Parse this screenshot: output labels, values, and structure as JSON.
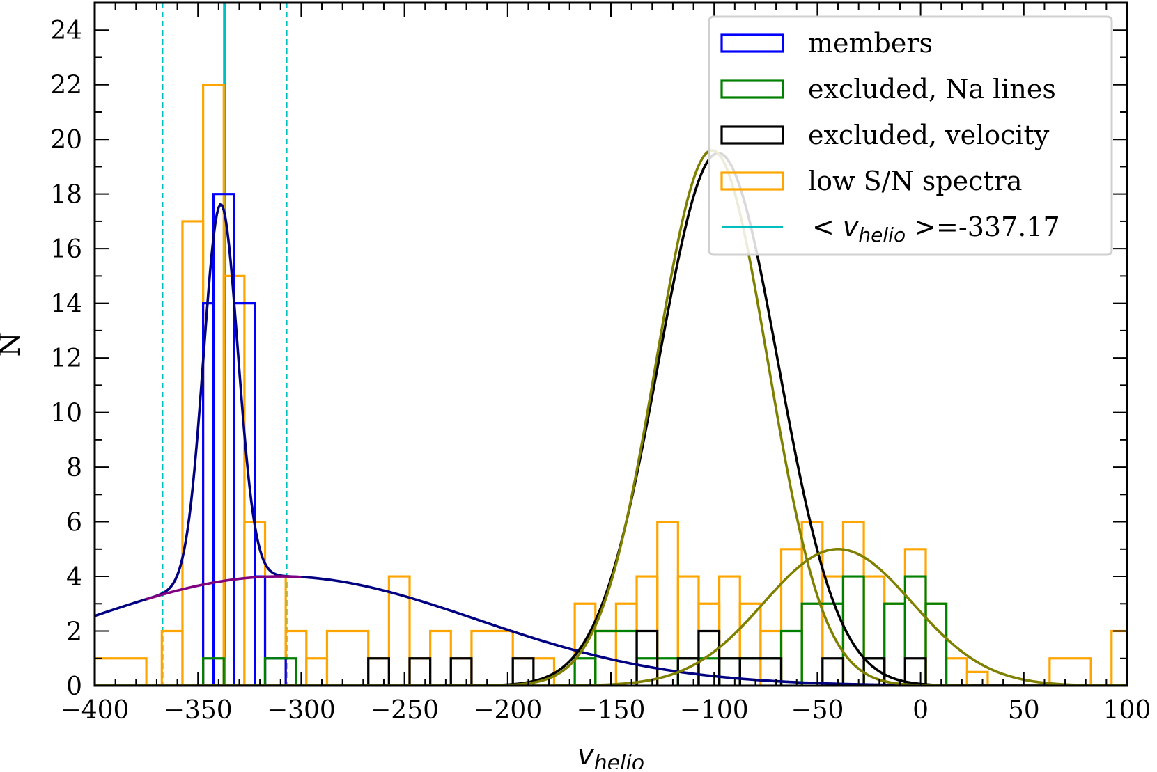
{
  "chart_data": {
    "type": "histogram",
    "xlabel": "v",
    "xlabel_sub": "helio",
    "ylabel": "N",
    "xlim": [
      -400,
      100
    ],
    "ylim": [
      0,
      25
    ],
    "x_ticks": [
      -400,
      -350,
      -300,
      -250,
      -200,
      -150,
      -100,
      -50,
      0,
      50,
      100
    ],
    "x_tick_labels": [
      "−400",
      "−350",
      "−300",
      "−250",
      "−200",
      "−150",
      "−100",
      "−50",
      "0",
      "50",
      "100"
    ],
    "y_ticks": [
      0,
      2,
      4,
      6,
      8,
      10,
      12,
      14,
      16,
      18,
      20,
      22,
      24
    ],
    "y_tick_labels": [
      "0",
      "2",
      "4",
      "6",
      "8",
      "10",
      "12",
      "14",
      "16",
      "18",
      "20",
      "22",
      "24"
    ],
    "colors": {
      "members": "#0000ff",
      "excluded_na": "#008000",
      "excluded_vel": "#000000",
      "low_sn": "#ffa500",
      "mean_line": "#00bfbf",
      "navy_fit": "#000080",
      "purple_fit": "#800080",
      "olive_fit": "#808000",
      "black_fit": "#000000"
    },
    "legend": [
      {
        "label": "members",
        "color": "#0000ff",
        "kind": "patch"
      },
      {
        "label": "excluded, Na lines",
        "color": "#008000",
        "kind": "patch"
      },
      {
        "label": "excluded, velocity",
        "color": "#000000",
        "kind": "patch"
      },
      {
        "label": "low S/N spectra",
        "color": "#ffa500",
        "kind": "patch"
      },
      {
        "label": "=-337.17",
        "color": "#00bfbf",
        "kind": "line",
        "prefix": "< v",
        "sub": "helio",
        "suffix": " >"
      }
    ],
    "mean_velocity": -337.17,
    "dashed_bounds": [
      -367.2,
      -307.1
    ],
    "series": [
      {
        "name": "low S/N spectra",
        "color": "#ffa500",
        "bins": [
          [
            -400,
            -375,
            1
          ],
          [
            -367.5,
            -357.5,
            2
          ],
          [
            -357.5,
            -347.5,
            17
          ],
          [
            -347.5,
            -337.5,
            22
          ],
          [
            -337.5,
            -327.5,
            15
          ],
          [
            -327.5,
            -317.5,
            6
          ],
          [
            -317.5,
            -307.5,
            4
          ],
          [
            -307.5,
            -297.5,
            2
          ],
          [
            -297.5,
            -287.5,
            1
          ],
          [
            -287.5,
            -267.5,
            2
          ],
          [
            -267.5,
            -257.5,
            1
          ],
          [
            -257.5,
            -247.5,
            4
          ],
          [
            -247.5,
            -237.5,
            1
          ],
          [
            -237.5,
            -227.5,
            2
          ],
          [
            -227.5,
            -217.5,
            1
          ],
          [
            -217.5,
            -197.5,
            2
          ],
          [
            -197.5,
            -177.5,
            1
          ],
          [
            -167.5,
            -157.5,
            3
          ],
          [
            -157.5,
            -147.5,
            2
          ],
          [
            -147.5,
            -137.5,
            3
          ],
          [
            -137.5,
            -127.5,
            4
          ],
          [
            -127.5,
            -117.5,
            6
          ],
          [
            -117.5,
            -107.5,
            4
          ],
          [
            -107.5,
            -97.5,
            3
          ],
          [
            -97.5,
            -87.5,
            4
          ],
          [
            -87.5,
            -77.5,
            3
          ],
          [
            -77.5,
            -67.5,
            2
          ],
          [
            -67.5,
            -57.5,
            5
          ],
          [
            -57.5,
            -47.5,
            6
          ],
          [
            -47.5,
            -37.5,
            4
          ],
          [
            -37.5,
            -27.5,
            6
          ],
          [
            -27.5,
            -17.5,
            4
          ],
          [
            -17.5,
            -7.5,
            3
          ],
          [
            -7.5,
            2.5,
            5
          ],
          [
            2.5,
            12.5,
            3
          ],
          [
            12.5,
            22.5,
            1
          ],
          [
            22.5,
            32.5,
            0.5
          ],
          [
            62.5,
            82.5,
            1
          ],
          [
            92.5,
            100,
            2
          ]
        ]
      },
      {
        "name": "members",
        "color": "#0000ff",
        "bins": [
          [
            -347.5,
            -342.5,
            14
          ],
          [
            -342.5,
            -332.5,
            18
          ],
          [
            -332.5,
            -322.5,
            14
          ],
          [
            -322.5,
            -317.5,
            4
          ],
          [
            -317.5,
            -307.5,
            1
          ]
        ]
      },
      {
        "name": "excluded, Na lines",
        "color": "#008000",
        "bins": [
          [
            -347.5,
            -337.5,
            1
          ],
          [
            -317.5,
            -302.5,
            1
          ],
          [
            -167.5,
            -157.5,
            1
          ],
          [
            -157.5,
            -137.5,
            2
          ],
          [
            -137.5,
            -117.5,
            1
          ],
          [
            -117.5,
            -107.5,
            1
          ],
          [
            -107.5,
            -97.5,
            1
          ],
          [
            -97.5,
            -87.5,
            1
          ],
          [
            -87.5,
            -67.5,
            1
          ],
          [
            -67.5,
            -57.5,
            2
          ],
          [
            -57.5,
            -37.5,
            3
          ],
          [
            -37.5,
            -27.5,
            4
          ],
          [
            -27.5,
            -17.5,
            1
          ],
          [
            -17.5,
            -7.5,
            3
          ],
          [
            -7.5,
            2.5,
            4
          ],
          [
            2.5,
            12.5,
            3
          ]
        ]
      },
      {
        "name": "excluded, velocity",
        "color": "#000000",
        "bins": [
          [
            -267.5,
            -257.5,
            1
          ],
          [
            -247.5,
            -237.5,
            1
          ],
          [
            -227.5,
            -217.5,
            1
          ],
          [
            -197.5,
            -187.5,
            1
          ],
          [
            -137.5,
            -127.5,
            2
          ],
          [
            -117.5,
            -107.5,
            1
          ],
          [
            -107.5,
            -97.5,
            2
          ],
          [
            -97.5,
            -87.5,
            1
          ],
          [
            -87.5,
            -67.5,
            1
          ],
          [
            -47.5,
            -37.5,
            1
          ],
          [
            -27.5,
            -17.5,
            1
          ],
          [
            -7.5,
            2.5,
            1
          ]
        ]
      }
    ],
    "curves": [
      {
        "name": "navy total fit",
        "color": "#000080",
        "components": [
          {
            "amp": 13.8,
            "mu": -339,
            "sigma": 8.3
          },
          {
            "amp": 4.0,
            "mu": -310,
            "sigma": 95
          }
        ]
      },
      {
        "name": "purple broad component",
        "color": "#800080",
        "components": [
          {
            "amp": 4.0,
            "mu": -310,
            "sigma": 95
          }
        ],
        "xrange": [
          -375,
          -300
        ]
      },
      {
        "name": "black fit",
        "color": "#000000",
        "components": [
          {
            "amp": 19.5,
            "mu": -98,
            "sigma": 29
          }
        ]
      },
      {
        "name": "olive fit",
        "color": "#808000",
        "components": [
          {
            "amp": 19.6,
            "mu": -101,
            "sigma": 27
          }
        ]
      },
      {
        "name": "olive small fit",
        "color": "#808000",
        "components": [
          {
            "amp": 5.0,
            "mu": -40,
            "sigma": 36
          }
        ]
      }
    ]
  }
}
